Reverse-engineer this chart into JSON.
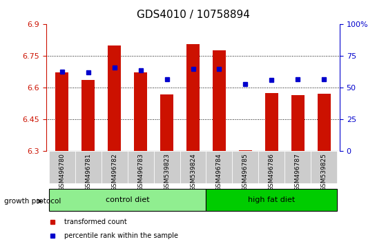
{
  "title": "GDS4010 / 10758894",
  "samples": [
    "GSM496780",
    "GSM496781",
    "GSM496782",
    "GSM496783",
    "GSM539823",
    "GSM539824",
    "GSM496784",
    "GSM496785",
    "GSM496786",
    "GSM496787",
    "GSM539825"
  ],
  "red_values": [
    6.672,
    6.638,
    6.8,
    6.672,
    6.568,
    6.806,
    6.778,
    6.305,
    6.575,
    6.565,
    6.572
  ],
  "blue_values": [
    63,
    62,
    66,
    64,
    57,
    65,
    65,
    53,
    56,
    57,
    57
  ],
  "baseline": 6.3,
  "ylim_left": [
    6.3,
    6.9
  ],
  "ylim_right": [
    0,
    100
  ],
  "yticks_left": [
    6.3,
    6.45,
    6.6,
    6.75,
    6.9
  ],
  "ytick_labels_left": [
    "6.3",
    "6.45",
    "6.6",
    "6.75",
    "6.9"
  ],
  "yticks_right": [
    0,
    25,
    50,
    75,
    100
  ],
  "ytick_labels_right": [
    "0",
    "25",
    "50",
    "75",
    "100%"
  ],
  "groups": [
    {
      "label": "control diet",
      "start": 0,
      "end": 6,
      "color": "#90ee90"
    },
    {
      "label": "high fat diet",
      "start": 6,
      "end": 11,
      "color": "#00cc00"
    }
  ],
  "group_protocol_label": "growth protocol",
  "bar_color": "#cc1100",
  "dot_color": "#0000cc",
  "grid_color": "#000000",
  "axis_color_left": "#cc1100",
  "axis_color_right": "#0000cc",
  "tick_bg_color": "#cccccc",
  "legend_items": [
    {
      "label": "transformed count",
      "color": "#cc1100",
      "marker": "s"
    },
    {
      "label": "percentile rank within the sample",
      "color": "#0000cc",
      "marker": "s"
    }
  ]
}
